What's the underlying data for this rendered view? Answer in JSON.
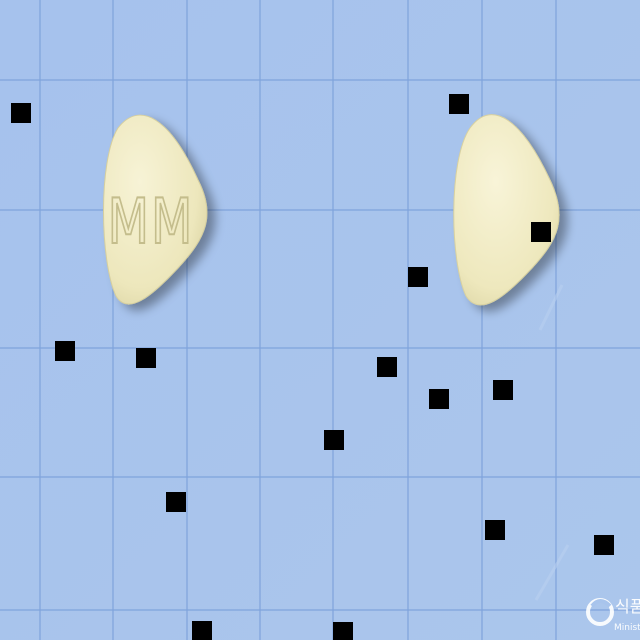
{
  "background": {
    "color": "#a8c4ec",
    "grid_major_color": "#7fa3db",
    "grid_minor_color": "#95b5e4"
  },
  "pills": [
    {
      "name": "pill-front",
      "imprint": "MM",
      "color": "#f0ebc2",
      "shape": "rounded-triangle"
    },
    {
      "name": "pill-back",
      "imprint": "",
      "color": "#f0ebc2",
      "shape": "rounded-triangle"
    }
  ],
  "occlusion_color": "#000000",
  "watermark": {
    "text": "식품",
    "subtext": "Minist",
    "icon": "ministry-logo-icon"
  }
}
